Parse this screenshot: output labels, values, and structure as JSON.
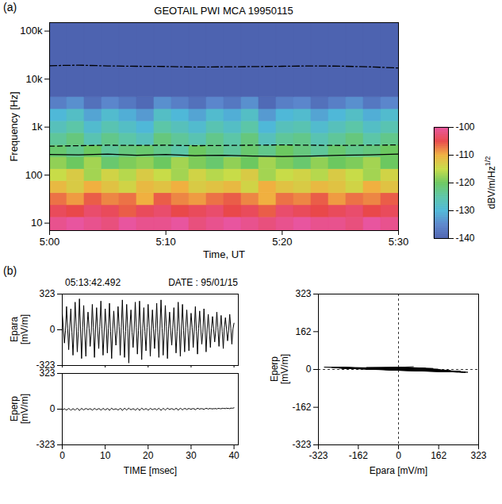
{
  "chart_data": [
    {
      "type": "heatmap",
      "panel_label": "(a)",
      "title": "GEOTAIL PWI MCA  19950115",
      "x_label": "Time, UT",
      "y_label": "Frequency [Hz]",
      "log": "y",
      "xlim": [
        0,
        30
      ],
      "xticks": [
        {
          "value": 0,
          "label": "5:00"
        },
        {
          "value": 10,
          "label": "5:10"
        },
        {
          "value": 20,
          "label": "5:20"
        },
        {
          "value": 30,
          "label": "5:30"
        }
      ],
      "ylim": [
        7,
        150000
      ],
      "yticks": [
        10,
        100,
        {
          "value": 1000,
          "label": "1k"
        },
        {
          "value": 10000,
          "label": "10k"
        },
        {
          "value": 100000,
          "label": "100k"
        }
      ],
      "time_bins": [
        0,
        1.5,
        3,
        4.5,
        6,
        7.5,
        9,
        10.5,
        12,
        13.5,
        15,
        16.5,
        18,
        19.5,
        21,
        22.5,
        24,
        25.5,
        27,
        28.5,
        30
      ],
      "frequency_bins": [
        7,
        13.3,
        23.7,
        42.2,
        75,
        133,
        237,
        422,
        750,
        1330,
        2370,
        4220,
        150000
      ],
      "cells": [
        [
          -101,
          -100,
          -101,
          -102,
          -100,
          -101,
          -101,
          -100,
          -102,
          -101,
          -100,
          -101,
          -102,
          -101,
          -100,
          -101,
          -101,
          -102,
          -100,
          -101
        ],
        [
          -104,
          -105,
          -103,
          -104,
          -106,
          -104,
          -103,
          -105,
          -104,
          -103,
          -105,
          -104,
          -106,
          -103,
          -104,
          -105,
          -104,
          -103,
          -105,
          -104
        ],
        [
          -107,
          -109,
          -106,
          -108,
          -107,
          -110,
          -106,
          -108,
          -109,
          -107,
          -106,
          -108,
          -110,
          -107,
          -108,
          -106,
          -109,
          -107,
          -108,
          -106
        ],
        [
          -111,
          -113,
          -110,
          -112,
          -114,
          -111,
          -112,
          -110,
          -113,
          -112,
          -111,
          -114,
          -110,
          -112,
          -113,
          -111,
          -112,
          -114,
          -110,
          -112
        ],
        [
          -115,
          -113,
          -117,
          -114,
          -116,
          -113,
          -115,
          -117,
          -114,
          -116,
          -115,
          -113,
          -117,
          -115,
          -114,
          -116,
          -113,
          -115,
          -117,
          -114
        ],
        [
          -118,
          -120,
          -117,
          -121,
          -119,
          -118,
          -120,
          -117,
          -119,
          -121,
          -118,
          -120,
          -117,
          -119,
          -121,
          -118,
          -120,
          -119,
          -117,
          -120
        ],
        [
          -121,
          -123,
          -120,
          -124,
          -122,
          -121,
          -123,
          -125,
          -120,
          -122,
          -124,
          -121,
          -123,
          -120,
          -122,
          -124,
          -121,
          -123,
          -122,
          -120
        ],
        [
          -124,
          -122,
          -126,
          -123,
          -125,
          -127,
          -122,
          -124,
          -126,
          -123,
          -125,
          -122,
          -127,
          -124,
          -123,
          -126,
          -124,
          -122,
          -125,
          -123
        ],
        [
          -127,
          -125,
          -129,
          -126,
          -128,
          -130,
          -125,
          -127,
          -129,
          -126,
          -128,
          -125,
          -130,
          -127,
          -126,
          -129,
          -127,
          -125,
          -128,
          -126
        ],
        [
          -130,
          -128,
          -132,
          -129,
          -131,
          -133,
          -128,
          -130,
          -132,
          -129,
          -131,
          -128,
          -133,
          -130,
          -129,
          -132,
          -130,
          -128,
          -131,
          -129
        ],
        [
          -136,
          -134,
          -138,
          -135,
          -137,
          -139,
          -134,
          -136,
          -138,
          -135,
          -137,
          -134,
          -139,
          -136,
          -135,
          -138,
          -136,
          -134,
          -137,
          -135
        ],
        [
          -140,
          -140,
          -140,
          -140,
          -140,
          -140,
          -140,
          -140,
          -140,
          -140,
          -140,
          -140,
          -140,
          -140,
          -140,
          -140,
          -140,
          -140,
          -140,
          -140
        ]
      ],
      "colorbar": {
        "label": "dBV/m/Hz",
        "label_superscript": "1/2",
        "range": [
          -140,
          -100
        ],
        "ticks": [
          -100,
          -110,
          -120,
          -130,
          -140
        ]
      },
      "series": [
        {
          "color": "#000000",
          "line_style": "dashdot",
          "x": [
            0,
            2.5,
            5,
            7.5,
            10,
            12.5,
            15,
            17.5,
            20,
            22.5,
            25,
            27.5,
            30
          ],
          "values": [
            19000,
            19500,
            18800,
            18500,
            18300,
            17800,
            18000,
            18200,
            18500,
            18800,
            18600,
            18000,
            17000
          ]
        },
        {
          "color": "#000000",
          "line_style": "dashed",
          "x": [
            0,
            2.5,
            5,
            7.5,
            10,
            12.5,
            15,
            17.5,
            20,
            22.5,
            25,
            27.5,
            30
          ],
          "values": [
            400,
            410,
            420,
            415,
            420,
            410,
            415,
            420,
            425,
            420,
            415,
            420,
            425
          ]
        },
        {
          "color": "#000000",
          "line_style": "solid",
          "x": [
            0,
            2.5,
            5,
            7.5,
            10,
            12.5,
            15,
            17.5,
            20,
            22.5,
            25,
            27.5,
            30
          ],
          "values": [
            270,
            265,
            275,
            260,
            270,
            255,
            260,
            250,
            245,
            250,
            260,
            265,
            275
          ]
        }
      ]
    },
    {
      "type": "line",
      "panel_label": "(b)",
      "title": "05:13:42.492",
      "subtitle": "DATE : 95/01/15",
      "x_label": "TIME [msec]",
      "color": "#000000",
      "xlim": [
        0,
        41
      ],
      "xticks": [
        0,
        10,
        20,
        30,
        40
      ],
      "ylim": [
        -323,
        323
      ],
      "yticks": [
        -323,
        0,
        323
      ],
      "x": [
        0,
        0.25,
        0.5,
        0.75,
        1,
        1.25,
        1.5,
        1.75,
        2,
        2.25,
        2.5,
        2.75,
        3,
        3.25,
        3.5,
        3.75,
        4,
        4.25,
        4.5,
        4.75,
        5,
        5.25,
        5.5,
        5.75,
        6,
        6.25,
        6.5,
        6.75,
        7,
        7.25,
        7.5,
        7.75,
        8,
        8.25,
        8.5,
        8.75,
        9,
        9.25,
        9.5,
        9.75,
        10,
        10.25,
        10.5,
        10.75,
        11,
        11.25,
        11.5,
        11.75,
        12,
        12.25,
        12.5,
        12.75,
        13,
        13.25,
        13.5,
        13.75,
        14,
        14.25,
        14.5,
        14.75,
        15,
        15.25,
        15.5,
        15.75,
        16,
        16.25,
        16.5,
        16.75,
        17,
        17.25,
        17.5,
        17.75,
        18,
        18.25,
        18.5,
        18.75,
        19,
        19.25,
        19.5,
        19.75,
        20,
        20.25,
        20.5,
        20.75,
        21,
        21.25,
        21.5,
        21.75,
        22,
        22.25,
        22.5,
        22.75,
        23,
        23.25,
        23.5,
        23.75,
        24,
        24.25,
        24.5,
        24.75,
        25,
        25.25,
        25.5,
        25.75,
        26,
        26.25,
        26.5,
        26.75,
        27,
        27.25,
        27.5,
        27.75,
        28,
        28.25,
        28.5,
        28.75,
        29,
        29.25,
        29.5,
        29.75,
        30,
        30.25,
        30.5,
        30.75,
        31,
        31.25,
        31.5,
        31.75,
        32,
        32.25,
        32.5,
        32.75,
        33,
        33.25,
        33.5,
        33.75,
        34,
        34.25,
        34.5,
        34.75,
        35,
        35.25,
        35.5,
        35.75,
        36,
        36.25,
        36.5,
        36.75,
        37,
        37.25,
        37.5,
        37.75,
        38,
        38.25,
        38.5,
        38.75,
        39,
        39.25,
        39.5,
        39.75,
        40
      ],
      "series": [
        {
          "name": "Epara [mV/m]",
          "values": [
            150,
            20,
            -120,
            -10,
            210,
            15,
            -180,
            25,
            190,
            -20,
            -230,
            10,
            250,
            30,
            -200,
            -15,
            280,
            10,
            -260,
            20,
            220,
            -25,
            -240,
            5,
            160,
            15,
            -150,
            -20,
            230,
            20,
            -250,
            10,
            200,
            -10,
            -170,
            30,
            260,
            5,
            -230,
            -25,
            190,
            25,
            -210,
            15,
            240,
            -15,
            -260,
            5,
            170,
            10,
            -140,
            -10,
            210,
            30,
            -230,
            20,
            270,
            -5,
            -250,
            -15,
            230,
            15,
            -300,
            25,
            180,
            -20,
            -160,
            10,
            250,
            20,
            -220,
            -5,
            260,
            10,
            -270,
            15,
            200,
            -15,
            -190,
            20,
            230,
            25,
            -240,
            -10,
            180,
            5,
            -170,
            15,
            240,
            -20,
            -250,
            10,
            270,
            15,
            -230,
            -20,
            220,
            30,
            -260,
            5,
            160,
            -10,
            -140,
            20,
            200,
            10,
            -210,
            -15,
            250,
            25,
            -240,
            10,
            230,
            -5,
            -200,
            20,
            180,
            15,
            -190,
            -10,
            150,
            20,
            -160,
            5,
            210,
            -15,
            -220,
            15,
            170,
            10,
            -130,
            -20,
            190,
            25,
            -200,
            10,
            140,
            -10,
            -160,
            15,
            120,
            5,
            -110,
            -5,
            160,
            20,
            -150,
            10,
            130,
            -15,
            -170,
            20,
            110,
            10,
            -100,
            -10,
            140,
            15,
            -130,
            5,
            60
          ]
        },
        {
          "name": "Eperp [mV/m]",
          "values": [
            -6,
            -2,
            4,
            -3,
            -8,
            -1,
            6,
            0,
            -10,
            -3,
            5,
            -2,
            -9,
            1,
            7,
            0,
            -12,
            -4,
            8,
            -1,
            -7,
            0,
            6,
            2,
            -5,
            1,
            4,
            -1,
            -9,
            -2,
            7,
            1,
            -6,
            0,
            5,
            2,
            -10,
            -3,
            8,
            0,
            -7,
            -1,
            6,
            1,
            -11,
            -2,
            9,
            0,
            -4,
            1,
            3,
            -1,
            -8,
            0,
            6,
            2,
            -12,
            -3,
            9,
            1,
            -9,
            2,
            10,
            0,
            -5,
            0,
            4,
            1,
            -10,
            -2,
            7,
            0,
            -11,
            -1,
            9,
            2,
            -6,
            1,
            5,
            0,
            -9,
            -2,
            8,
            1,
            -5,
            0,
            4,
            2,
            -8,
            1,
            8,
            0,
            -11,
            -2,
            7,
            1,
            -9,
            0,
            10,
            3,
            -4,
            2,
            5,
            1,
            -6,
            1,
            7,
            3,
            -9,
            0,
            8,
            2,
            -7,
            2,
            6,
            4,
            -4,
            3,
            6,
            2,
            -2,
            4,
            5,
            3,
            -5,
            2,
            8,
            5,
            -1,
            5,
            4,
            3,
            -3,
            4,
            7,
            6,
            0,
            6,
            5,
            4,
            2,
            5,
            4,
            6,
            1,
            7,
            6,
            5,
            3,
            8,
            7,
            6,
            5,
            9,
            6,
            7,
            4,
            10,
            8,
            9,
            12
          ]
        }
      ]
    },
    {
      "type": "hodogram",
      "x_label": "Epara [mV/m]",
      "y_label": "Eperp [mV/m]",
      "color": "#000000",
      "xlim": [
        -323,
        323
      ],
      "xticks": [
        -323,
        -162,
        0,
        162,
        323
      ],
      "ylim": [
        -323,
        323
      ],
      "yticks": [
        -323,
        -162,
        0,
        162,
        323
      ],
      "rules": {
        "x": [
          0
        ],
        "y": [
          0
        ]
      }
    }
  ]
}
